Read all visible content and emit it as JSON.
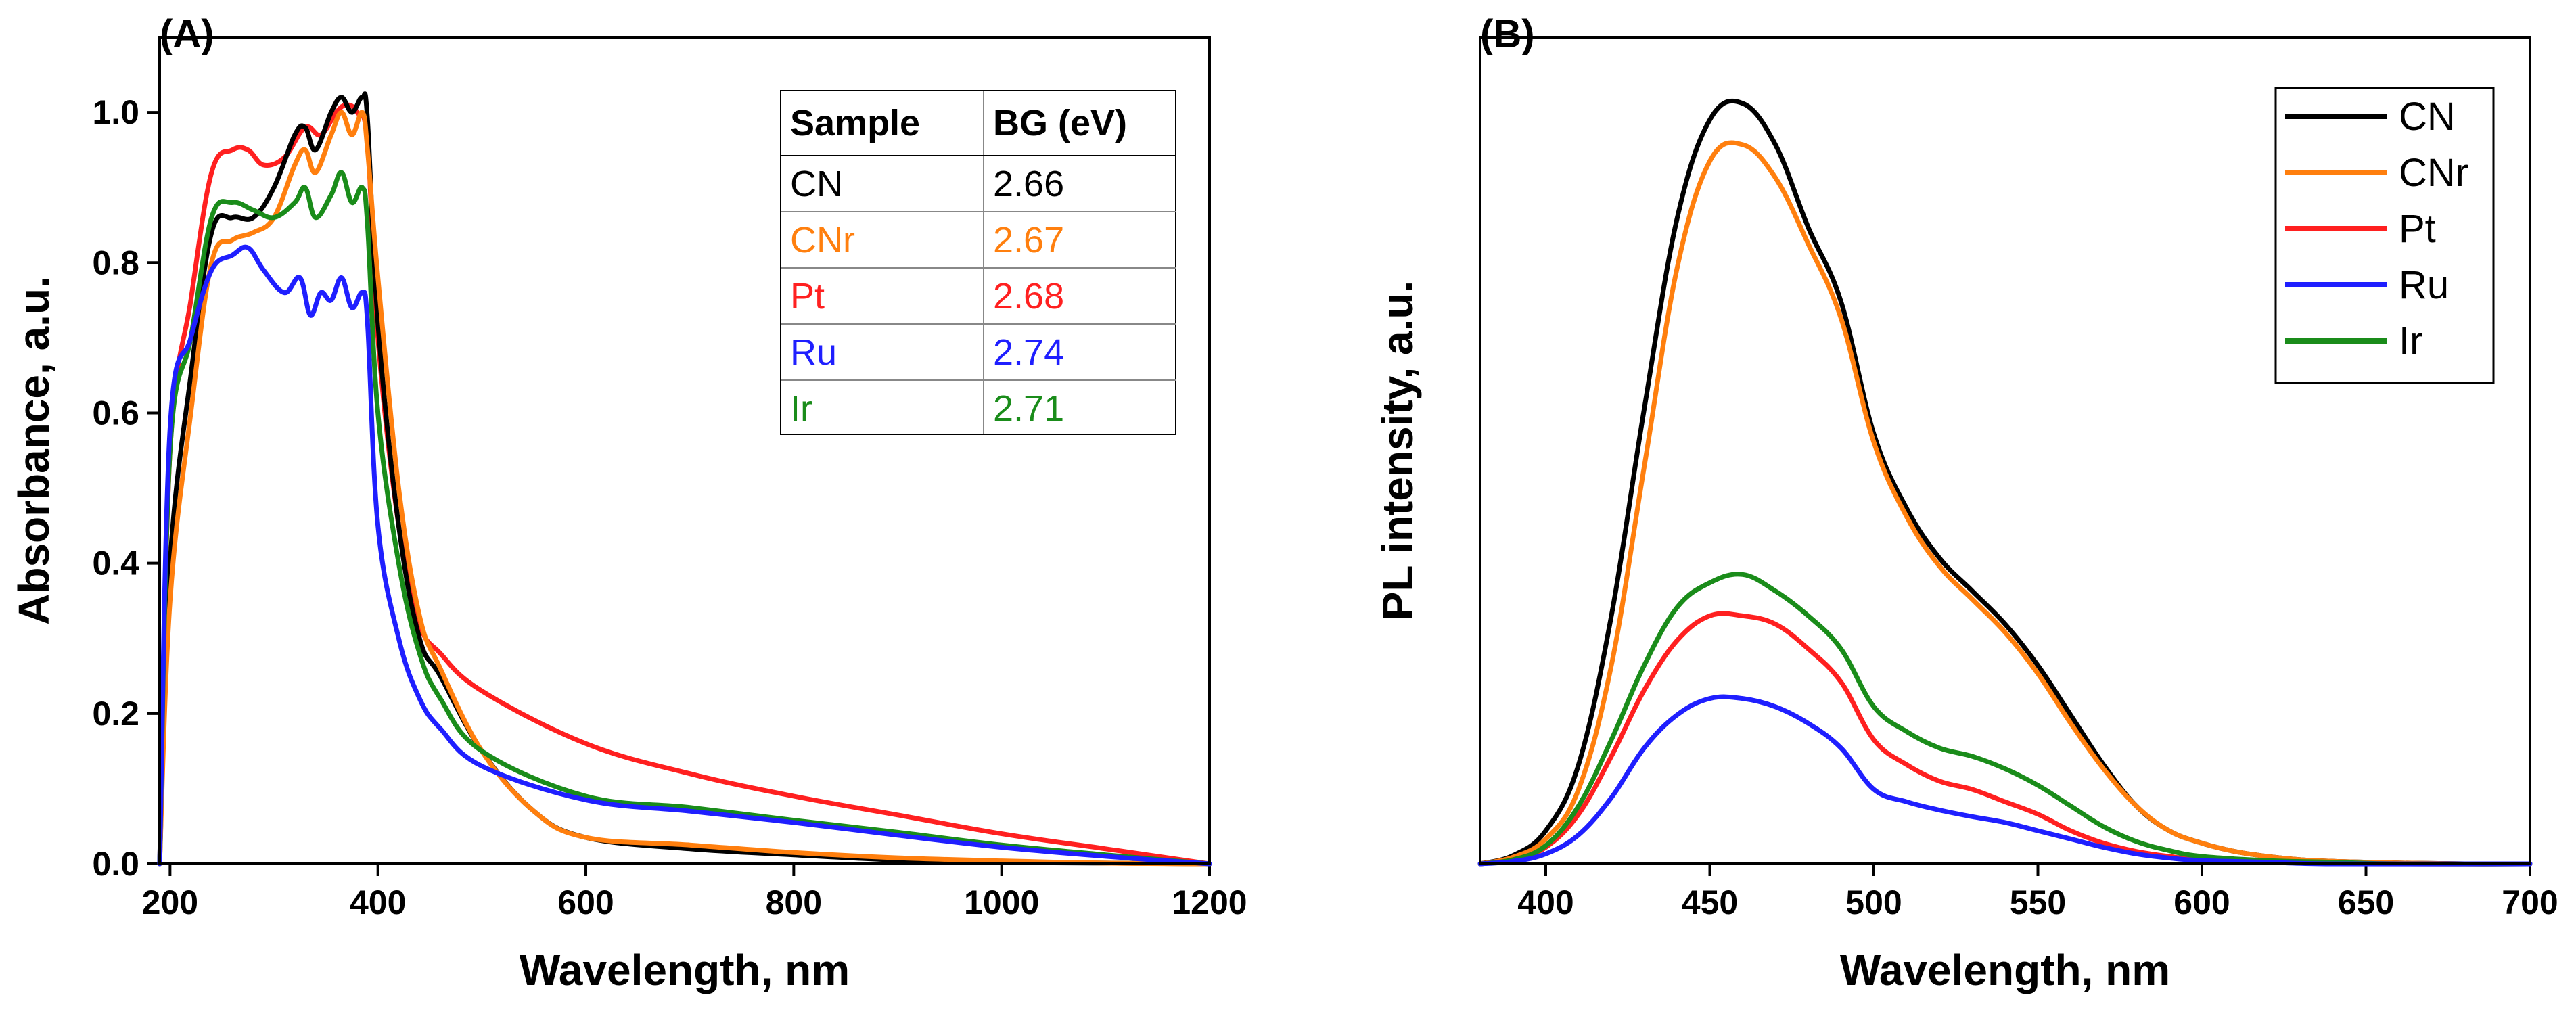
{
  "colors": {
    "CN": "#000000",
    "CNr": "#ff7f0e",
    "Pt": "#ff2020",
    "Ru": "#1f1fff",
    "Ir": "#1a8c1a"
  },
  "chart_data": [
    {
      "id": "A",
      "type": "line",
      "panel_label": "(A)",
      "xlabel": "Wavelength, nm",
      "ylabel": "Absorbance, a.u.",
      "xlim": [
        190,
        1200
      ],
      "ylim": [
        0,
        1.1
      ],
      "xticks": [
        200,
        400,
        600,
        800,
        1000,
        1200
      ],
      "yticks": [
        0.0,
        0.2,
        0.4,
        0.6,
        0.8,
        1.0
      ],
      "xtick_labels": [
        "200",
        "400",
        "600",
        "800",
        "1000",
        "1200"
      ],
      "ytick_labels": [
        "0.0",
        "0.2",
        "0.4",
        "0.6",
        "0.8",
        "1.0"
      ],
      "table": {
        "headers": [
          "Sample",
          "BG (eV)"
        ],
        "rows": [
          {
            "sample": "CN",
            "bg": "2.66"
          },
          {
            "sample": "CNr",
            "bg": "2.67"
          },
          {
            "sample": "Pt",
            "bg": "2.68"
          },
          {
            "sample": "Ru",
            "bg": "2.74"
          },
          {
            "sample": "Ir",
            "bg": "2.71"
          }
        ],
        "position": "top-right"
      },
      "series": [
        {
          "name": "Pt",
          "x": [
            190,
            200,
            220,
            240,
            260,
            275,
            290,
            310,
            330,
            345,
            360,
            370,
            380,
            390,
            400,
            420,
            440,
            460,
            500,
            600,
            700,
            800,
            900,
            1000,
            1100,
            1200
          ],
          "y": [
            0.0,
            0.55,
            0.75,
            0.92,
            0.95,
            0.95,
            0.93,
            0.94,
            0.98,
            0.97,
            1.0,
            1.01,
            1.0,
            0.96,
            0.7,
            0.45,
            0.32,
            0.28,
            0.23,
            0.16,
            0.12,
            0.09,
            0.065,
            0.04,
            0.02,
            0.0
          ]
        },
        {
          "name": "CN",
          "x": [
            190,
            200,
            220,
            240,
            260,
            280,
            300,
            320,
            330,
            340,
            355,
            365,
            375,
            385,
            390,
            400,
            420,
            440,
            460,
            500,
            550,
            600,
            700,
            800,
            900,
            1000,
            1100,
            1200
          ],
          "y": [
            0.0,
            0.4,
            0.65,
            0.84,
            0.86,
            0.86,
            0.9,
            0.97,
            0.98,
            0.95,
            1.0,
            1.02,
            1.0,
            1.02,
            0.99,
            0.72,
            0.45,
            0.3,
            0.25,
            0.15,
            0.07,
            0.035,
            0.02,
            0.012,
            0.005,
            0.002,
            0.001,
            0.0
          ]
        },
        {
          "name": "CNr",
          "x": [
            190,
            200,
            220,
            240,
            260,
            280,
            300,
            320,
            330,
            340,
            355,
            365,
            375,
            385,
            390,
            400,
            420,
            440,
            460,
            500,
            550,
            600,
            700,
            800,
            900,
            1000,
            1100,
            1200
          ],
          "y": [
            0.0,
            0.35,
            0.6,
            0.8,
            0.83,
            0.84,
            0.86,
            0.93,
            0.95,
            0.92,
            0.97,
            1.0,
            0.97,
            1.0,
            0.95,
            0.78,
            0.5,
            0.33,
            0.26,
            0.15,
            0.07,
            0.035,
            0.025,
            0.015,
            0.008,
            0.004,
            0.001,
            0.0
          ]
        },
        {
          "name": "Ir",
          "x": [
            190,
            200,
            220,
            240,
            260,
            280,
            300,
            320,
            330,
            340,
            355,
            365,
            375,
            385,
            390,
            400,
            420,
            440,
            460,
            500,
            600,
            700,
            800,
            900,
            1000,
            1100,
            1200
          ],
          "y": [
            0.0,
            0.55,
            0.7,
            0.86,
            0.88,
            0.87,
            0.86,
            0.88,
            0.9,
            0.86,
            0.89,
            0.92,
            0.88,
            0.9,
            0.85,
            0.6,
            0.4,
            0.28,
            0.22,
            0.15,
            0.09,
            0.075,
            0.058,
            0.042,
            0.025,
            0.012,
            0.0
          ]
        },
        {
          "name": "Ru",
          "x": [
            190,
            200,
            220,
            240,
            260,
            275,
            290,
            310,
            325,
            335,
            345,
            355,
            365,
            375,
            385,
            390,
            400,
            420,
            440,
            460,
            500,
            600,
            700,
            800,
            900,
            1000,
            1100,
            1200
          ],
          "y": [
            0.0,
            0.58,
            0.7,
            0.79,
            0.81,
            0.82,
            0.79,
            0.76,
            0.78,
            0.73,
            0.76,
            0.75,
            0.78,
            0.74,
            0.76,
            0.72,
            0.45,
            0.3,
            0.22,
            0.18,
            0.13,
            0.085,
            0.07,
            0.055,
            0.038,
            0.022,
            0.01,
            0.0
          ]
        }
      ]
    },
    {
      "id": "B",
      "type": "line",
      "panel_label": "(B)",
      "xlabel": "Wavelength, nm",
      "ylabel": "PL intensity, a.u.",
      "xlim": [
        380,
        700
      ],
      "ylim": [
        0,
        1.0
      ],
      "xticks": [
        400,
        450,
        500,
        550,
        600,
        650,
        700
      ],
      "xtick_labels": [
        "400",
        "450",
        "500",
        "550",
        "600",
        "650",
        "700"
      ],
      "legend": [
        "CN",
        "CNr",
        "Pt",
        "Ru",
        "Ir"
      ],
      "legend_position": "top-right",
      "series": [
        {
          "name": "CN",
          "x": [
            380,
            390,
            400,
            410,
            420,
            430,
            440,
            450,
            460,
            470,
            480,
            490,
            500,
            510,
            520,
            530,
            540,
            550,
            560,
            570,
            580,
            590,
            600,
            610,
            620,
            630,
            640,
            650,
            660,
            680,
            700
          ],
          "y": [
            0.0,
            0.01,
            0.04,
            0.12,
            0.3,
            0.55,
            0.78,
            0.9,
            0.92,
            0.87,
            0.77,
            0.68,
            0.52,
            0.43,
            0.37,
            0.33,
            0.29,
            0.24,
            0.18,
            0.12,
            0.07,
            0.04,
            0.025,
            0.015,
            0.009,
            0.005,
            0.003,
            0.002,
            0.001,
            0.0,
            0.0
          ]
        },
        {
          "name": "CNr",
          "x": [
            380,
            390,
            400,
            410,
            420,
            430,
            440,
            450,
            460,
            470,
            480,
            490,
            500,
            510,
            520,
            530,
            540,
            550,
            560,
            570,
            580,
            590,
            600,
            610,
            620,
            630,
            640,
            650,
            660,
            680,
            700
          ],
          "y": [
            0.0,
            0.008,
            0.03,
            0.09,
            0.24,
            0.48,
            0.72,
            0.85,
            0.87,
            0.83,
            0.75,
            0.66,
            0.51,
            0.42,
            0.36,
            0.32,
            0.28,
            0.23,
            0.17,
            0.115,
            0.07,
            0.04,
            0.025,
            0.015,
            0.009,
            0.005,
            0.003,
            0.002,
            0.001,
            0.0,
            0.0
          ]
        },
        {
          "name": "Pt",
          "x": [
            380,
            390,
            400,
            410,
            420,
            430,
            440,
            450,
            460,
            470,
            480,
            490,
            500,
            510,
            520,
            530,
            540,
            550,
            560,
            570,
            580,
            590,
            600,
            620,
            640,
            660,
            700
          ],
          "y": [
            0.0,
            0.005,
            0.02,
            0.06,
            0.13,
            0.21,
            0.27,
            0.3,
            0.3,
            0.29,
            0.26,
            0.22,
            0.15,
            0.12,
            0.1,
            0.09,
            0.075,
            0.06,
            0.04,
            0.025,
            0.015,
            0.009,
            0.005,
            0.002,
            0.001,
            0.0,
            0.0
          ]
        },
        {
          "name": "Ir",
          "x": [
            380,
            390,
            400,
            410,
            420,
            430,
            440,
            450,
            460,
            470,
            480,
            490,
            500,
            510,
            520,
            530,
            540,
            550,
            560,
            570,
            580,
            590,
            600,
            620,
            640,
            660,
            700
          ],
          "y": [
            0.0,
            0.005,
            0.022,
            0.07,
            0.15,
            0.24,
            0.31,
            0.34,
            0.35,
            0.33,
            0.3,
            0.26,
            0.19,
            0.16,
            0.14,
            0.13,
            0.115,
            0.095,
            0.07,
            0.045,
            0.027,
            0.016,
            0.009,
            0.004,
            0.002,
            0.0,
            0.0
          ]
        },
        {
          "name": "Ru",
          "x": [
            380,
            390,
            400,
            410,
            420,
            430,
            440,
            450,
            460,
            470,
            480,
            490,
            500,
            510,
            520,
            530,
            540,
            550,
            560,
            570,
            580,
            590,
            600,
            620,
            640,
            700
          ],
          "y": [
            0.0,
            0.003,
            0.012,
            0.035,
            0.08,
            0.14,
            0.18,
            0.2,
            0.2,
            0.19,
            0.17,
            0.14,
            0.09,
            0.075,
            0.065,
            0.057,
            0.05,
            0.04,
            0.03,
            0.02,
            0.012,
            0.007,
            0.004,
            0.002,
            0.0,
            0.0
          ]
        }
      ]
    }
  ]
}
